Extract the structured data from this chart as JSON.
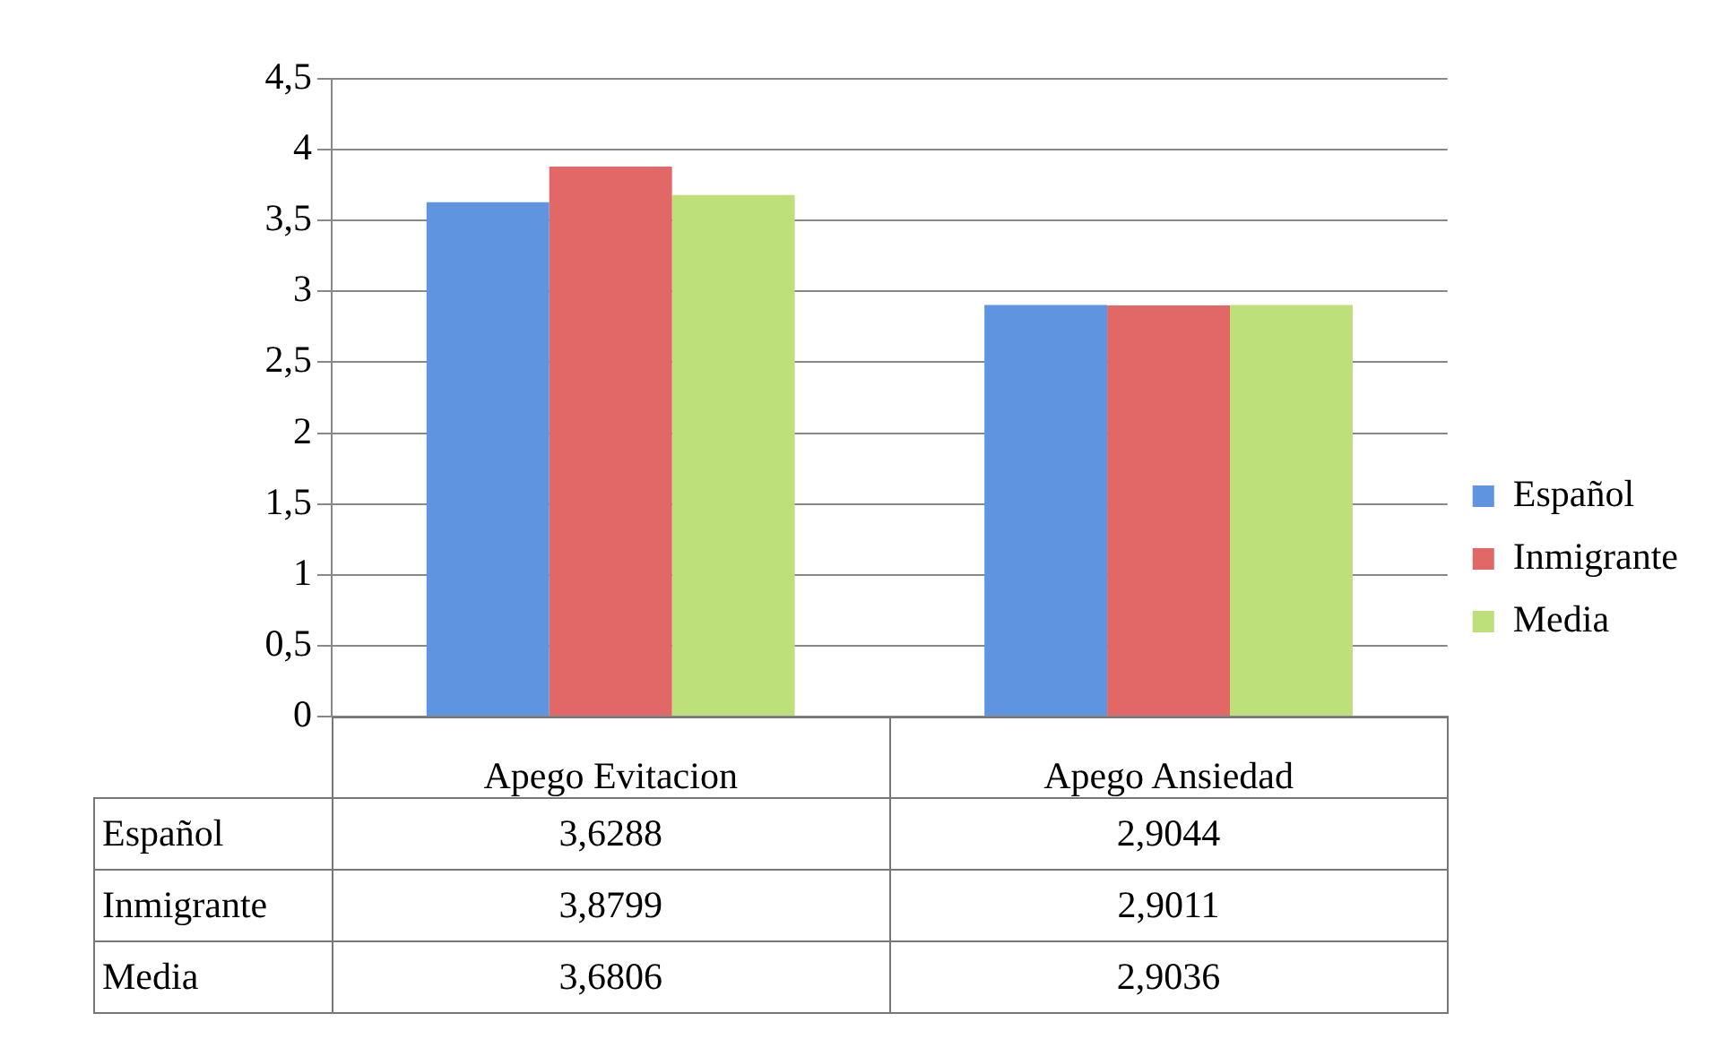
{
  "chart_data": {
    "type": "bar",
    "categories": [
      "Apego Evitacion",
      "Apego Ansiedad"
    ],
    "series": [
      {
        "name": "Español",
        "color": "#5f94e0",
        "values": [
          3.6288,
          2.9044
        ],
        "value_labels": [
          "3,6288",
          "2,9044"
        ]
      },
      {
        "name": "Inmigrante",
        "color": "#e26868",
        "values": [
          3.8799,
          2.9011
        ],
        "value_labels": [
          "3,8799",
          "2,9011"
        ]
      },
      {
        "name": "Media",
        "color": "#bde07a",
        "values": [
          3.6806,
          2.9036
        ],
        "value_labels": [
          "3,6806",
          "2,9036"
        ]
      }
    ],
    "ylim": [
      0,
      4.5
    ],
    "yticks": [
      0,
      {
        "value": 0.5,
        "label": "0,5"
      },
      1,
      {
        "value": 1.5,
        "label": "1,5"
      },
      2,
      {
        "value": 2.5,
        "label": "2,5"
      },
      3,
      {
        "value": 3.5,
        "label": "3,5"
      },
      4,
      {
        "value": 4.5,
        "label": "4,5"
      }
    ],
    "grid": "y",
    "legend": "right"
  }
}
